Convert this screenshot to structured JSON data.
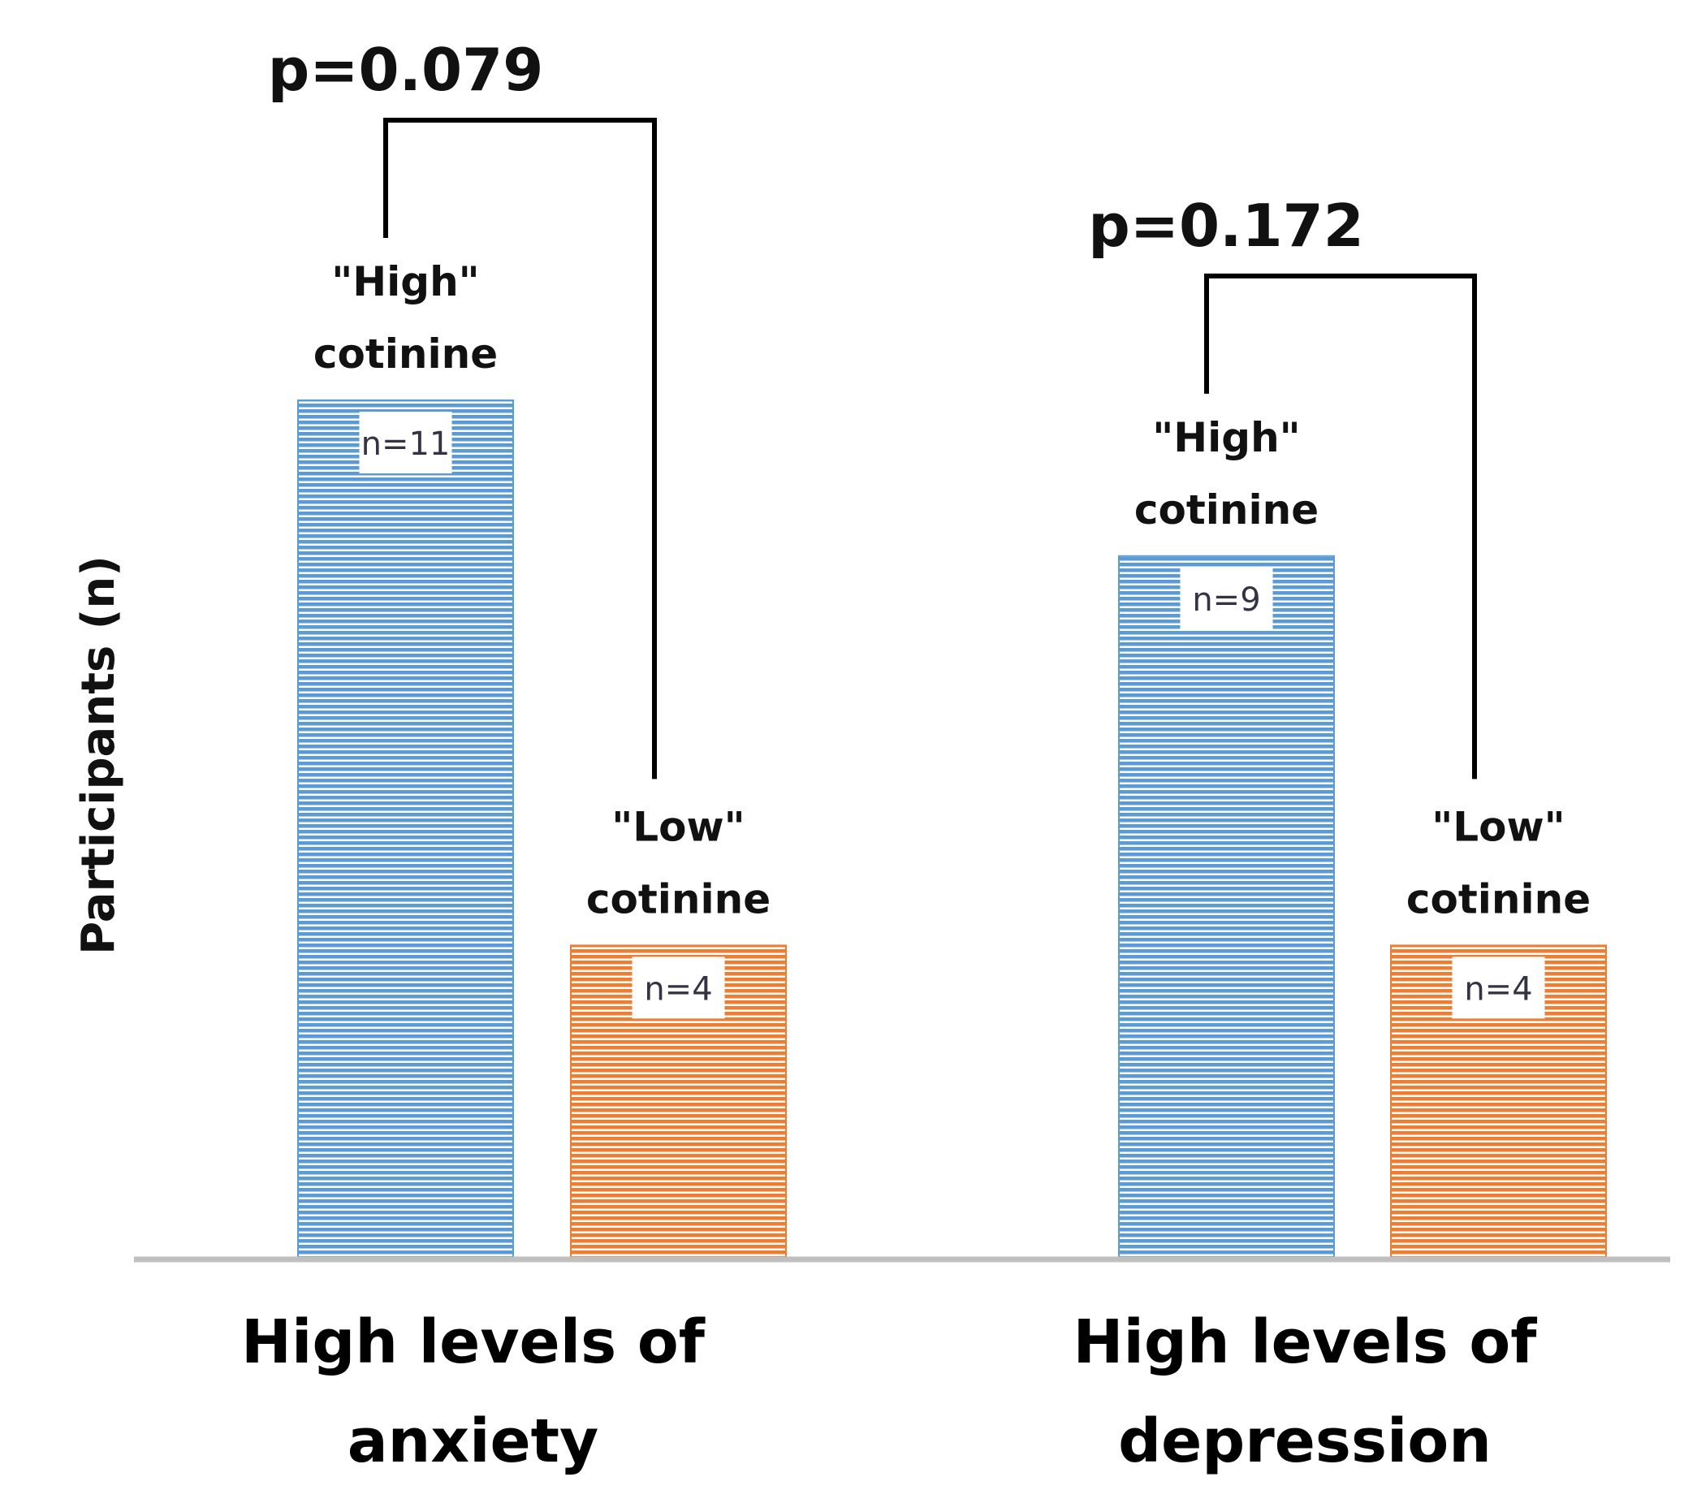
{
  "chart_data": {
    "type": "bar",
    "ylabel": "Participants (n)",
    "ylim": [
      0,
      11
    ],
    "grid": false,
    "colors": {
      "high": "#5b9bd5",
      "low": "#ed7d31",
      "stripe": "#ffffff",
      "axis": "#bfbfbf",
      "bracket": "#000000"
    },
    "groups": [
      {
        "category_lines": [
          "High levels of",
          "anxiety"
        ],
        "p_value": "p=0.079",
        "bars": [
          {
            "series": "high",
            "value": 11,
            "value_label": "n=11",
            "name_lines": [
              "\"High\"",
              "cotinine"
            ]
          },
          {
            "series": "low",
            "value": 4,
            "value_label": "n=4",
            "name_lines": [
              "\"Low\"",
              "cotinine"
            ]
          }
        ]
      },
      {
        "category_lines": [
          "High levels of",
          "depression"
        ],
        "p_value": "p=0.172",
        "bars": [
          {
            "series": "high",
            "value": 9,
            "value_label": "n=9",
            "name_lines": [
              "\"High\"",
              "cotinine"
            ]
          },
          {
            "series": "low",
            "value": 4,
            "value_label": "n=4",
            "name_lines": [
              "\"Low\"",
              "cotinine"
            ]
          }
        ]
      }
    ]
  }
}
